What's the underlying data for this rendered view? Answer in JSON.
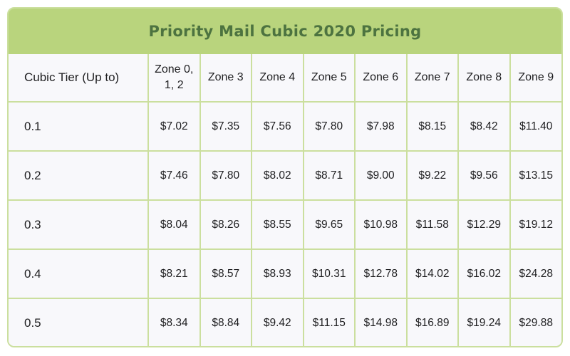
{
  "title": "Priority Mail Cubic 2020 Pricing",
  "colors": {
    "header_bg": "#b9d47d",
    "title_text": "#4d7340",
    "border": "#cbdf9e",
    "cell_bg": "#f8f8fb",
    "cell_text": "#1e1e20"
  },
  "table": {
    "columns": [
      "Cubic Tier (Up to)",
      "Zone 0, 1, 2",
      "Zone 3",
      "Zone 4",
      "Zone 5",
      "Zone 6",
      "Zone 7",
      "Zone 8",
      "Zone 9"
    ],
    "rows": [
      {
        "tier": "0.1",
        "prices": [
          "$7.02",
          "$7.35",
          "$7.56",
          "$7.80",
          "$7.98",
          "$8.15",
          "$8.42",
          "$11.40"
        ]
      },
      {
        "tier": "0.2",
        "prices": [
          "$7.46",
          "$7.80",
          "$8.02",
          "$8.71",
          "$9.00",
          "$9.22",
          "$9.56",
          "$13.15"
        ]
      },
      {
        "tier": "0.3",
        "prices": [
          "$8.04",
          "$8.26",
          "$8.55",
          "$9.65",
          "$10.98",
          "$11.58",
          "$12.29",
          "$19.12"
        ]
      },
      {
        "tier": "0.4",
        "prices": [
          "$8.21",
          "$8.57",
          "$8.93",
          "$10.31",
          "$12.78",
          "$14.02",
          "$16.02",
          "$24.28"
        ]
      },
      {
        "tier": "0.5",
        "prices": [
          "$8.34",
          "$8.84",
          "$9.42",
          "$11.15",
          "$14.98",
          "$16.89",
          "$19.24",
          "$29.88"
        ]
      }
    ]
  },
  "chart_data": {
    "type": "table",
    "title": "Priority Mail Cubic 2020 Pricing",
    "columns": [
      "Cubic Tier (Up to)",
      "Zone 0, 1, 2",
      "Zone 3",
      "Zone 4",
      "Zone 5",
      "Zone 6",
      "Zone 7",
      "Zone 8",
      "Zone 9"
    ],
    "rows": [
      [
        "0.1",
        7.02,
        7.35,
        7.56,
        7.8,
        7.98,
        8.15,
        8.42,
        11.4
      ],
      [
        "0.2",
        7.46,
        7.8,
        8.02,
        8.71,
        9.0,
        9.22,
        9.56,
        13.15
      ],
      [
        "0.3",
        8.04,
        8.26,
        8.55,
        9.65,
        10.98,
        11.58,
        12.29,
        19.12
      ],
      [
        "0.4",
        8.21,
        8.57,
        8.93,
        10.31,
        12.78,
        14.02,
        16.02,
        24.28
      ],
      [
        "0.5",
        8.34,
        8.84,
        9.42,
        11.15,
        14.98,
        16.89,
        19.24,
        29.88
      ]
    ],
    "units": "USD",
    "value_prefix": "$"
  }
}
